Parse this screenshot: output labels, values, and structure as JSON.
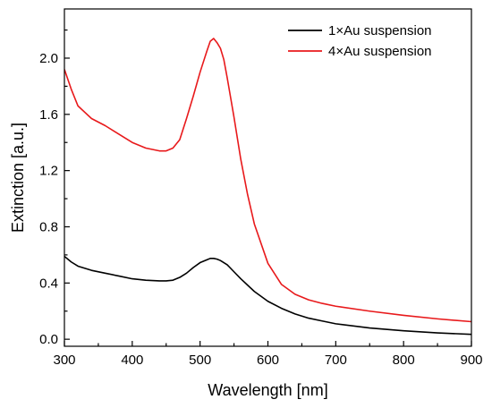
{
  "chart_data": {
    "type": "line",
    "title": "",
    "xlabel": "Wavelength [nm]",
    "ylabel": "Extinction [a.u.]",
    "xlim": [
      300,
      900
    ],
    "ylim": [
      -0.05,
      2.35
    ],
    "x_ticks": [
      300,
      400,
      500,
      600,
      700,
      800,
      900
    ],
    "y_ticks": [
      0.0,
      0.4,
      0.8,
      1.2,
      1.6,
      2.0
    ],
    "x_tick_labels": [
      "300",
      "400",
      "500",
      "600",
      "700",
      "800",
      "900"
    ],
    "y_tick_labels": [
      "0.0",
      "0.4",
      "0.8",
      "1.2",
      "1.6",
      "2.0"
    ],
    "grid": false,
    "legend_position": "top-right",
    "series": [
      {
        "name": "1×Au suspension",
        "color": "#000000",
        "x": [
          300,
          310,
          320,
          340,
          360,
          380,
          400,
          420,
          440,
          450,
          460,
          470,
          480,
          490,
          500,
          510,
          515,
          520,
          525,
          530,
          540,
          550,
          560,
          580,
          600,
          620,
          640,
          660,
          680,
          700,
          750,
          800,
          850,
          900
        ],
        "y": [
          0.59,
          0.55,
          0.52,
          0.49,
          0.47,
          0.45,
          0.43,
          0.42,
          0.415,
          0.415,
          0.42,
          0.44,
          0.47,
          0.51,
          0.545,
          0.565,
          0.575,
          0.575,
          0.57,
          0.56,
          0.53,
          0.48,
          0.43,
          0.34,
          0.27,
          0.22,
          0.18,
          0.15,
          0.13,
          0.11,
          0.08,
          0.06,
          0.045,
          0.035
        ]
      },
      {
        "name": "4×Au suspension",
        "color": "#e8191b",
        "x": [
          300,
          310,
          320,
          340,
          360,
          380,
          400,
          420,
          440,
          450,
          460,
          470,
          480,
          490,
          500,
          510,
          515,
          520,
          525,
          530,
          535,
          540,
          550,
          560,
          570,
          580,
          600,
          620,
          640,
          660,
          680,
          700,
          750,
          800,
          850,
          900
        ],
        "y": [
          1.92,
          1.78,
          1.66,
          1.57,
          1.52,
          1.46,
          1.4,
          1.36,
          1.34,
          1.34,
          1.36,
          1.42,
          1.57,
          1.73,
          1.9,
          2.05,
          2.12,
          2.14,
          2.11,
          2.07,
          1.99,
          1.86,
          1.58,
          1.28,
          1.03,
          0.82,
          0.54,
          0.39,
          0.32,
          0.28,
          0.255,
          0.235,
          0.2,
          0.17,
          0.145,
          0.125
        ]
      }
    ]
  }
}
